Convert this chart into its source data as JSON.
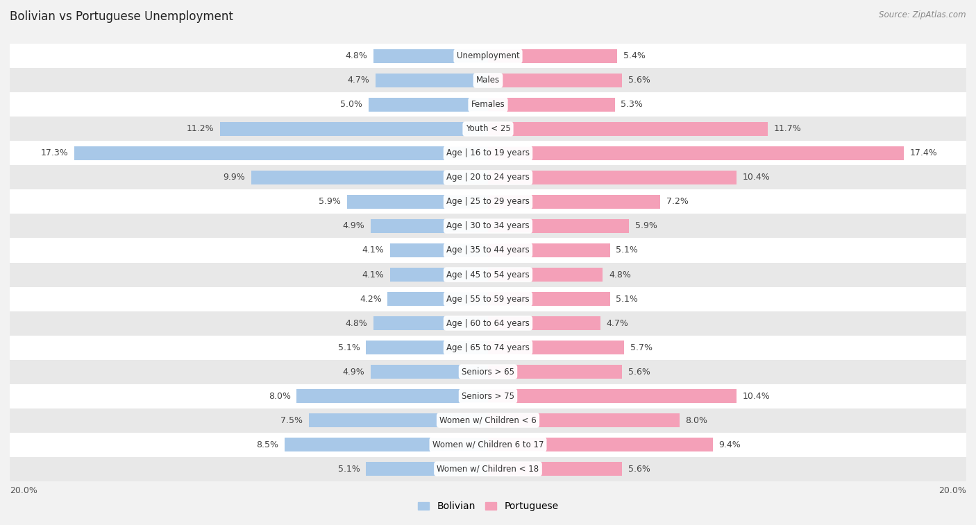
{
  "title": "Bolivian vs Portuguese Unemployment",
  "source": "Source: ZipAtlas.com",
  "categories": [
    "Unemployment",
    "Males",
    "Females",
    "Youth < 25",
    "Age | 16 to 19 years",
    "Age | 20 to 24 years",
    "Age | 25 to 29 years",
    "Age | 30 to 34 years",
    "Age | 35 to 44 years",
    "Age | 45 to 54 years",
    "Age | 55 to 59 years",
    "Age | 60 to 64 years",
    "Age | 65 to 74 years",
    "Seniors > 65",
    "Seniors > 75",
    "Women w/ Children < 6",
    "Women w/ Children 6 to 17",
    "Women w/ Children < 18"
  ],
  "bolivian": [
    4.8,
    4.7,
    5.0,
    11.2,
    17.3,
    9.9,
    5.9,
    4.9,
    4.1,
    4.1,
    4.2,
    4.8,
    5.1,
    4.9,
    8.0,
    7.5,
    8.5,
    5.1
  ],
  "portuguese": [
    5.4,
    5.6,
    5.3,
    11.7,
    17.4,
    10.4,
    7.2,
    5.9,
    5.1,
    4.8,
    5.1,
    4.7,
    5.7,
    5.6,
    10.4,
    8.0,
    9.4,
    5.6
  ],
  "bolivian_color": "#a8c8e8",
  "portuguese_color": "#f4a0b8",
  "bg_color": "#f2f2f2",
  "row_color_odd": "#ffffff",
  "row_color_even": "#e8e8e8",
  "bar_height": 0.55,
  "xlim": 20.0,
  "legend_label_bolivian": "Bolivian",
  "legend_label_portuguese": "Portuguese",
  "value_fontsize": 9.0,
  "label_fontsize": 8.5,
  "title_fontsize": 12
}
